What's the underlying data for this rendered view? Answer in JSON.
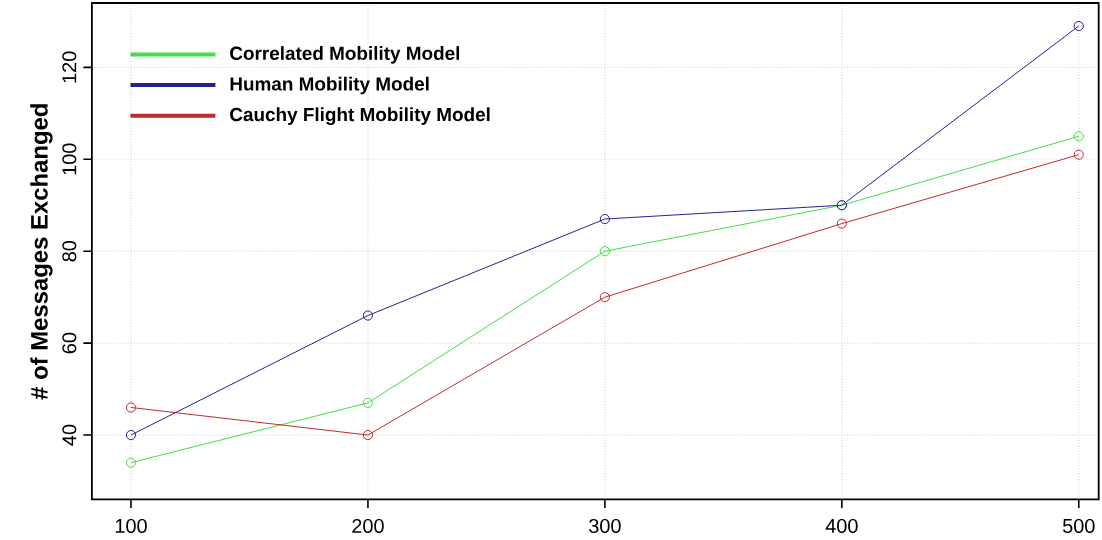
{
  "chart_data": {
    "type": "line",
    "ylabel": "# of Messages Exchanged",
    "x": [
      100,
      200,
      300,
      400,
      500
    ],
    "series": [
      {
        "name": "Correlated Mobility Model",
        "color": "#44dd44",
        "values": [
          34,
          47,
          80,
          90,
          105
        ]
      },
      {
        "name": "Human Mobility Model",
        "color": "#22228f",
        "values": [
          40,
          66,
          87,
          90,
          129
        ]
      },
      {
        "name": "Cauchy Flight Mobility Model",
        "color": "#c02a2a",
        "values": [
          46,
          40,
          70,
          86,
          101
        ]
      }
    ],
    "xlim": [
      83.5,
      508.4
    ],
    "ylim": [
      26,
      134
    ],
    "xticks": [
      100,
      200,
      300,
      400,
      500
    ],
    "yticks": [
      40,
      60,
      80,
      100,
      120
    ],
    "grid": true,
    "legend": "top left",
    "marker": "circle",
    "line_style": "solid"
  }
}
